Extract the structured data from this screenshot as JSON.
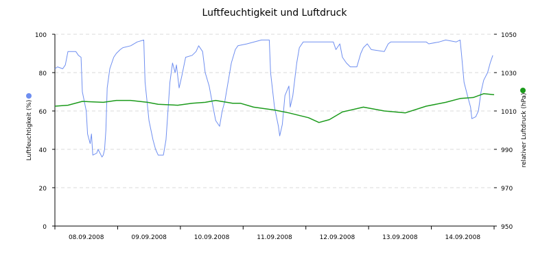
{
  "chart_data": {
    "type": "line",
    "title": "Luftfeuchtigkeit und Luftdruck",
    "xlim": [
      "2008-09-08 00:00",
      "2008-09-15 00:00"
    ],
    "x_tick_labels": [
      "08.09.2008",
      "09.09.2008",
      "10.09.2008",
      "11.09.2008",
      "12.09.2008",
      "13.09.2008",
      "14.09.2008"
    ],
    "grid": "horizontal dashed",
    "left_axis": {
      "label": "Luftfeuchtigkeit (%)",
      "ylim": [
        0,
        100
      ],
      "ticks": [
        0,
        20,
        40,
        60,
        80,
        100
      ]
    },
    "right_axis": {
      "label": "relativer Luftdruck (hPa)",
      "ylim": [
        950,
        1050
      ],
      "ticks": [
        950,
        970,
        990,
        1010,
        1030,
        1050
      ]
    },
    "series": [
      {
        "name": "Luftfeuchtigkeit (%)",
        "axis": "left",
        "color": "#6e8ef0",
        "points": [
          [
            "2008-09-08 00:00",
            82
          ],
          [
            "2008-09-08 01:00",
            83
          ],
          [
            "2008-09-08 03:00",
            82
          ],
          [
            "2008-09-08 04:00",
            84
          ],
          [
            "2008-09-08 05:00",
            91
          ],
          [
            "2008-09-08 08:00",
            91
          ],
          [
            "2008-09-08 09:00",
            89
          ],
          [
            "2008-09-08 10:00",
            88
          ],
          [
            "2008-09-08 10:30",
            70
          ],
          [
            "2008-09-08 12:00",
            60
          ],
          [
            "2008-09-08 12:30",
            48
          ],
          [
            "2008-09-08 13:30",
            43
          ],
          [
            "2008-09-08 14:00",
            48
          ],
          [
            "2008-09-08 14:30",
            37
          ],
          [
            "2008-09-08 16:00",
            38
          ],
          [
            "2008-09-08 16:30",
            40
          ],
          [
            "2008-09-08 18:00",
            36
          ],
          [
            "2008-09-08 18:30",
            37
          ],
          [
            "2008-09-08 19:00",
            40
          ],
          [
            "2008-09-08 19:30",
            50
          ],
          [
            "2008-09-08 20:00",
            72
          ],
          [
            "2008-09-08 21:00",
            82
          ],
          [
            "2008-09-08 22:30",
            88
          ],
          [
            "2008-09-08 23:30",
            90
          ],
          [
            "2008-09-09 01:00",
            92
          ],
          [
            "2008-09-09 02:00",
            93
          ],
          [
            "2008-09-09 05:00",
            94
          ],
          [
            "2008-09-09 07:30",
            96
          ],
          [
            "2008-09-09 10:00",
            97
          ],
          [
            "2008-09-09 10:30",
            75
          ],
          [
            "2008-09-09 12:00",
            55
          ],
          [
            "2008-09-09 13:30",
            45
          ],
          [
            "2008-09-09 14:30",
            40
          ],
          [
            "2008-09-09 15:30",
            37
          ],
          [
            "2008-09-09 17:30",
            37
          ],
          [
            "2008-09-09 18:30",
            45
          ],
          [
            "2008-09-09 20:00",
            75
          ],
          [
            "2008-09-09 21:00",
            85
          ],
          [
            "2008-09-09 22:00",
            80
          ],
          [
            "2008-09-09 22:30",
            84
          ],
          [
            "2008-09-09 23:30",
            72
          ],
          [
            "2008-09-10 00:30",
            78
          ],
          [
            "2008-09-10 02:00",
            88
          ],
          [
            "2008-09-10 04:30",
            89
          ],
          [
            "2008-09-10 06:00",
            91
          ],
          [
            "2008-09-10 07:00",
            94
          ],
          [
            "2008-09-10 08:30",
            91
          ],
          [
            "2008-09-10 09:30",
            80
          ],
          [
            "2008-09-10 11:00",
            73
          ],
          [
            "2008-09-10 12:30",
            62
          ],
          [
            "2008-09-10 13:30",
            55
          ],
          [
            "2008-09-10 15:00",
            52
          ],
          [
            "2008-09-10 16:00",
            60
          ],
          [
            "2008-09-10 17:00",
            65
          ],
          [
            "2008-09-10 18:30",
            77
          ],
          [
            "2008-09-10 19:30",
            85
          ],
          [
            "2008-09-10 21:00",
            92
          ],
          [
            "2008-09-10 22:00",
            94
          ],
          [
            "2008-09-11 01:30",
            95
          ],
          [
            "2008-09-11 07:00",
            97
          ],
          [
            "2008-09-11 10:00",
            97
          ],
          [
            "2008-09-11 10:30",
            80
          ],
          [
            "2008-09-11 12:00",
            62
          ],
          [
            "2008-09-11 13:30",
            52
          ],
          [
            "2008-09-11 14:00",
            47
          ],
          [
            "2008-09-11 15:00",
            53
          ],
          [
            "2008-09-11 16:00",
            68
          ],
          [
            "2008-09-11 17:30",
            73
          ],
          [
            "2008-09-11 18:00",
            62
          ],
          [
            "2008-09-11 19:00",
            68
          ],
          [
            "2008-09-11 20:30",
            85
          ],
          [
            "2008-09-11 21:30",
            93
          ],
          [
            "2008-09-11 23:00",
            96
          ],
          [
            "2008-09-12 02:30",
            96
          ],
          [
            "2008-09-12 07:30",
            96
          ],
          [
            "2008-09-12 10:30",
            96
          ],
          [
            "2008-09-12 11:30",
            92
          ],
          [
            "2008-09-12 13:00",
            95
          ],
          [
            "2008-09-12 14:00",
            88
          ],
          [
            "2008-09-12 15:30",
            85
          ],
          [
            "2008-09-12 17:00",
            83
          ],
          [
            "2008-09-12 19:30",
            83
          ],
          [
            "2008-09-12 21:00",
            90
          ],
          [
            "2008-09-12 22:00",
            93
          ],
          [
            "2008-09-12 23:30",
            95
          ],
          [
            "2008-09-13 01:00",
            92
          ],
          [
            "2008-09-13 06:00",
            91
          ],
          [
            "2008-09-13 07:30",
            95
          ],
          [
            "2008-09-13 08:30",
            96
          ],
          [
            "2008-09-13 22:00",
            96
          ],
          [
            "2008-09-13 23:00",
            95
          ],
          [
            "2008-09-14 03:00",
            96
          ],
          [
            "2008-09-14 05:30",
            97
          ],
          [
            "2008-09-14 09:30",
            96
          ],
          [
            "2008-09-14 11:00",
            97
          ],
          [
            "2008-09-14 11:30",
            90
          ],
          [
            "2008-09-14 12:30",
            75
          ],
          [
            "2008-09-14 14:00",
            67
          ],
          [
            "2008-09-14 15:00",
            62
          ],
          [
            "2008-09-14 15:30",
            56
          ],
          [
            "2008-09-14 17:00",
            57
          ],
          [
            "2008-09-14 18:00",
            60
          ],
          [
            "2008-09-14 19:00",
            70
          ],
          [
            "2008-09-14 20:00",
            76
          ],
          [
            "2008-09-14 21:30",
            80
          ],
          [
            "2008-09-14 22:30",
            85
          ],
          [
            "2008-09-14 23:30",
            89
          ]
        ]
      },
      {
        "name": "relativer Luftdruck (hPa)",
        "axis": "right",
        "color": "#1a9a1a",
        "points": [
          [
            "2008-09-08 00:00",
            1012.5
          ],
          [
            "2008-09-08 05:00",
            1013
          ],
          [
            "2008-09-08 10:30",
            1015
          ],
          [
            "2008-09-08 18:30",
            1014.5
          ],
          [
            "2008-09-08 23:30",
            1015.5
          ],
          [
            "2008-09-09 05:00",
            1015.5
          ],
          [
            "2008-09-09 11:30",
            1014.5
          ],
          [
            "2008-09-09 15:30",
            1013.5
          ],
          [
            "2008-09-09 23:00",
            1013
          ],
          [
            "2008-09-10 04:30",
            1014
          ],
          [
            "2008-09-10 09:30",
            1014.5
          ],
          [
            "2008-09-10 13:30",
            1015.5
          ],
          [
            "2008-09-10 20:00",
            1014
          ],
          [
            "2008-09-10 23:00",
            1014
          ],
          [
            "2008-09-11 04:00",
            1012
          ],
          [
            "2008-09-11 12:00",
            1010.5
          ],
          [
            "2008-09-11 17:30",
            1009
          ],
          [
            "2008-09-12 01:00",
            1006.5
          ],
          [
            "2008-09-12 05:00",
            1004
          ],
          [
            "2008-09-12 09:00",
            1005.5
          ],
          [
            "2008-09-12 14:00",
            1009.5
          ],
          [
            "2008-09-12 22:00",
            1012
          ],
          [
            "2008-09-13 06:00",
            1010
          ],
          [
            "2008-09-13 14:00",
            1009
          ],
          [
            "2008-09-13 22:00",
            1012.5
          ],
          [
            "2008-09-14 05:30",
            1014.5
          ],
          [
            "2008-09-14 11:00",
            1016.5
          ],
          [
            "2008-09-14 16:00",
            1017
          ],
          [
            "2008-09-14 20:00",
            1019
          ],
          [
            "2008-09-15 00:00",
            1018.5
          ]
        ]
      }
    ]
  }
}
